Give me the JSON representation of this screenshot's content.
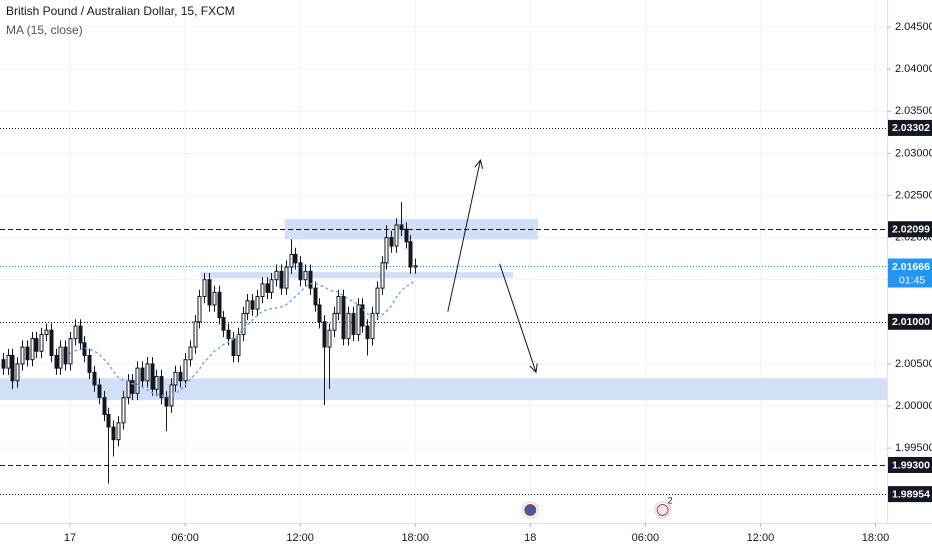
{
  "chart_data": {
    "type": "candlestick",
    "title": "British Pound / Australian Dollar, 15, FXCM",
    "subtitle": "MA (15, close)",
    "x": [
      -3.5,
      -3.25,
      -3,
      -2.75,
      -2.5,
      -2.25,
      -2,
      -1.75,
      -1.5,
      -1.25,
      -1,
      -0.75,
      -0.5,
      -0.25,
      0,
      0.25,
      0.5,
      0.75,
      1,
      1.25,
      1.5,
      1.75,
      2,
      2.25,
      2.5,
      2.75,
      3,
      3.25,
      3.5,
      3.75,
      4,
      4.25,
      4.5,
      4.75,
      5,
      5.25,
      5.5,
      5.75,
      6,
      6.25,
      6.5,
      6.75,
      7,
      7.25,
      7.5,
      7.75,
      8,
      8.25,
      8.5,
      8.75,
      9,
      9.25,
      9.5,
      9.75,
      10,
      10.25,
      10.5,
      10.75,
      11,
      11.25,
      11.5,
      11.75,
      12,
      12.25,
      12.5,
      12.75,
      13,
      13.25,
      13.5,
      13.75,
      14,
      14.25,
      14.5,
      14.75,
      15,
      15.25,
      15.5,
      15.75,
      16,
      16.25,
      16.5,
      16.75,
      17,
      17.25,
      17.5,
      17.75,
      18
    ],
    "open": [
      2.0055,
      2.0045,
      2.006,
      2.003,
      2.005,
      2.007,
      2.0055,
      2.008,
      2.0065,
      2.0085,
      2.009,
      2.006,
      2.0045,
      2.007,
      2.005,
      2.008,
      2.0095,
      2.0075,
      2.006,
      2.004,
      2.0025,
      2.001,
      1.999,
      1.9975,
      1.996,
      1.998,
      2.001,
      2.003,
      2.0015,
      2.0045,
      2.003,
      2.005,
      2.002,
      2.0035,
      2.001,
      2.0,
      2.0025,
      2.004,
      2.003,
      2.0055,
      2.007,
      2.01,
      2.013,
      2.015,
      2.012,
      2.0135,
      2.0105,
      2.009,
      2.008,
      2.006,
      2.0085,
      2.011,
      2.0125,
      2.0115,
      2.013,
      2.0145,
      2.0135,
      2.015,
      2.016,
      2.014,
      2.0165,
      2.018,
      2.017,
      2.015,
      2.016,
      2.014,
      2.012,
      2.01,
      2.007,
      2.009,
      2.011,
      2.013,
      2.008,
      2.011,
      2.0085,
      2.012,
      2.0095,
      2.008,
      2.011,
      2.014,
      2.017,
      2.02,
      2.019,
      2.0215,
      2.021,
      2.0195,
      2.0165
    ],
    "high": [
      2.0063,
      2.0068,
      2.0068,
      2.0058,
      2.0078,
      2.0078,
      2.0088,
      2.0088,
      2.0093,
      2.0098,
      2.0098,
      2.0068,
      2.0078,
      2.0078,
      2.0088,
      2.0103,
      2.0103,
      2.0083,
      2.0068,
      2.0048,
      2.0033,
      2.0018,
      1.9998,
      1.9983,
      1.9988,
      2.0018,
      2.0038,
      2.0038,
      2.0053,
      2.0053,
      2.0058,
      2.0058,
      2.0043,
      2.0043,
      2.0018,
      2.0033,
      2.0048,
      2.0048,
      2.0063,
      2.0078,
      2.0108,
      2.0138,
      2.0158,
      2.0158,
      2.0143,
      2.0143,
      2.0113,
      2.0098,
      2.0088,
      2.0093,
      2.0118,
      2.0133,
      2.0133,
      2.0138,
      2.0153,
      2.0153,
      2.0158,
      2.0168,
      2.0168,
      2.0173,
      2.0198,
      2.0188,
      2.0178,
      2.0168,
      2.0168,
      2.0148,
      2.0128,
      2.0108,
      2.0098,
      2.0118,
      2.0138,
      2.0138,
      2.0118,
      2.0118,
      2.0128,
      2.0128,
      2.0103,
      2.0118,
      2.0148,
      2.0178,
      2.0215,
      2.0208,
      2.0223,
      2.0242,
      2.0218,
      2.0203,
      2.0175
    ],
    "low": [
      2.0037,
      2.0037,
      2.002,
      2.0022,
      2.0042,
      2.0047,
      2.0047,
      2.0057,
      2.0057,
      2.0077,
      2.0052,
      2.0037,
      2.0037,
      2.0042,
      2.0042,
      2.0072,
      2.0067,
      2.0052,
      2.0032,
      2.0017,
      2.0002,
      1.9982,
      1.9908,
      1.994,
      1.9952,
      1.9972,
      2.0002,
      2.0007,
      2.0007,
      2.0022,
      2.0022,
      2.0012,
      2.0012,
      2.0002,
      1.997,
      1.9992,
      2.0017,
      2.0022,
      2.0022,
      2.0047,
      2.0062,
      2.0092,
      2.0122,
      2.0112,
      2.0112,
      2.0097,
      2.0082,
      2.0072,
      2.0052,
      2.0052,
      2.0077,
      2.0102,
      2.0107,
      2.0107,
      2.0122,
      2.0127,
      2.0127,
      2.0142,
      2.0132,
      2.0132,
      2.0157,
      2.0162,
      2.0142,
      2.0142,
      2.0132,
      2.0112,
      2.0092,
      2.0001,
      2.002,
      2.0082,
      2.0102,
      2.0072,
      2.0072,
      2.0077,
      2.0077,
      2.0087,
      2.006,
      2.0072,
      2.0102,
      2.0132,
      2.0162,
      2.0182,
      2.0182,
      2.0202,
      2.0187,
      2.0157,
      2.0157
    ],
    "close": [
      2.0045,
      2.006,
      2.003,
      2.005,
      2.007,
      2.0055,
      2.008,
      2.0065,
      2.0085,
      2.009,
      2.006,
      2.0045,
      2.007,
      2.005,
      2.008,
      2.0095,
      2.0075,
      2.006,
      2.004,
      2.0025,
      2.001,
      1.999,
      1.9975,
      1.996,
      1.998,
      2.001,
      2.003,
      2.0015,
      2.0045,
      2.003,
      2.005,
      2.002,
      2.0035,
      2.001,
      2.0,
      2.0025,
      2.004,
      2.003,
      2.0055,
      2.007,
      2.01,
      2.013,
      2.015,
      2.012,
      2.0135,
      2.0105,
      2.009,
      2.008,
      2.006,
      2.0085,
      2.011,
      2.0125,
      2.0115,
      2.013,
      2.0145,
      2.0135,
      2.015,
      2.016,
      2.014,
      2.0165,
      2.018,
      2.017,
      2.015,
      2.016,
      2.014,
      2.012,
      2.01,
      2.007,
      2.009,
      2.011,
      2.013,
      2.008,
      2.011,
      2.0085,
      2.012,
      2.0095,
      2.008,
      2.011,
      2.014,
      2.017,
      2.02,
      2.019,
      2.0215,
      2.021,
      2.0195,
      2.0165,
      2.01666
    ],
    "up_color": "#ffffff",
    "down_color": "#131722",
    "wick_color": "#131722",
    "ma": {
      "period": 15,
      "color": "#6fa8f5"
    },
    "xlim": [
      -3.65,
      42.6
    ],
    "ylim": [
      1.98611,
      2.04821
    ],
    "xticks": [
      {
        "value": 0,
        "label": "17"
      },
      {
        "value": 6,
        "label": "06:00"
      },
      {
        "value": 12,
        "label": "12:00"
      },
      {
        "value": 18,
        "label": "18:00"
      },
      {
        "value": 24,
        "label": "18"
      },
      {
        "value": 30,
        "label": "06:00"
      },
      {
        "value": 36,
        "label": "12:00"
      },
      {
        "value": 42,
        "label": "18:00"
      }
    ],
    "yticks": [
      {
        "value": 1.995,
        "label": "1.99500"
      },
      {
        "value": 2.0,
        "label": "2.00000"
      },
      {
        "value": 2.005,
        "label": "2.00500"
      },
      {
        "value": 2.01,
        "label": "2.01000"
      },
      {
        "value": 2.015,
        "label": "2.01500"
      },
      {
        "value": 2.02,
        "label": "2.02000"
      },
      {
        "value": 2.025,
        "label": "2.02500"
      },
      {
        "value": 2.03,
        "label": "2.03000"
      },
      {
        "value": 2.035,
        "label": "2.03500"
      },
      {
        "value": 2.04,
        "label": "2.04000"
      },
      {
        "value": 2.045,
        "label": "2.04500"
      }
    ],
    "grid": true,
    "levels": [
      {
        "value": 2.03302,
        "label": "2.03302",
        "style": "dotted"
      },
      {
        "value": 2.02099,
        "label": "2.02099",
        "style": "dashed"
      },
      {
        "value": 2.01,
        "label": "2.01000",
        "style": "dotted"
      },
      {
        "value": 1.993,
        "label": "1.99300",
        "style": "dashed"
      },
      {
        "value": 1.98954,
        "label": "1.98954",
        "style": "dotted"
      }
    ],
    "current_price": {
      "value": 2.01666,
      "label": "2.01666",
      "countdown": "01:45",
      "color": "#2196f3"
    },
    "zones": [
      {
        "x0": 11.2,
        "x1": 24.4,
        "y0": 2.0198,
        "y1": 2.0222
      },
      {
        "x0": 6.8,
        "x1": 23.1,
        "y0": 2.0152,
        "y1": 2.0159
      },
      {
        "x0": -3.65,
        "x1": 42.6,
        "y0": 2.0007,
        "y1": 2.0033
      }
    ],
    "zone_color": "#c9daf6",
    "arrows": [
      {
        "x0": 19.7,
        "y0": 2.0112,
        "x1": 21.4,
        "y1": 2.0292
      },
      {
        "x0": 22.4,
        "y0": 2.0169,
        "x1": 24.3,
        "y1": 2.004
      }
    ],
    "events": [
      {
        "x": 24.0
      },
      {
        "x": 30.9,
        "count": 2
      }
    ]
  }
}
